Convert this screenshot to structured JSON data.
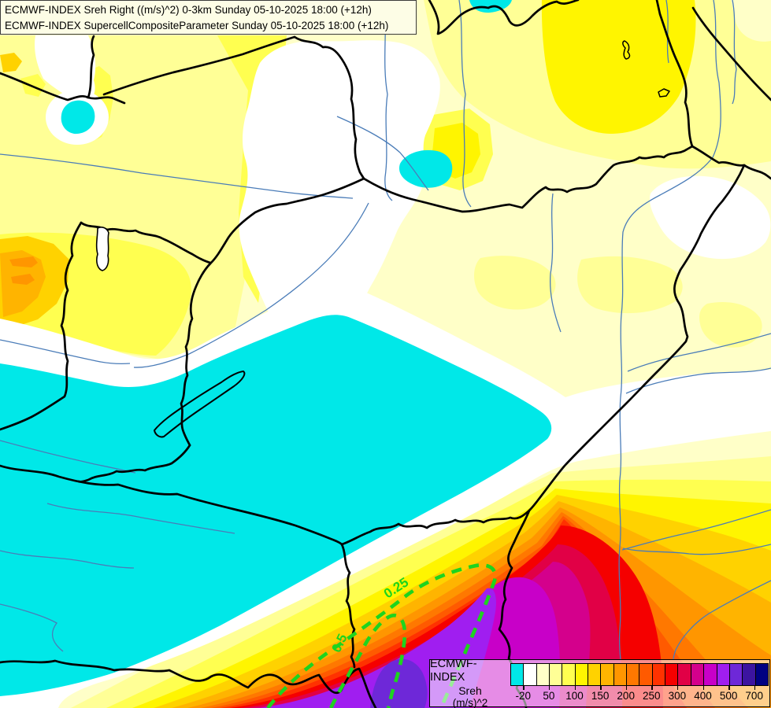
{
  "titlebar": {
    "line1": "ECMWF-INDEX Sreh Right ((m/s)^2) 0-3km Sunday 05-10-2025 18:00 (+12h)",
    "line2": "ECMWF-INDEX SupercellCompositeParameter Sunday 05-10-2025 18:00 (+12h)"
  },
  "legend": {
    "title": "ECMWF-INDEX",
    "param": "Sreh",
    "unit": "(m/s)^2",
    "tick_labels": [
      "-20",
      "50",
      "100",
      "150",
      "200",
      "250",
      "300",
      "400",
      "500",
      "700"
    ],
    "tick_boundaries": [
      1,
      3,
      5,
      7,
      9,
      11,
      13,
      15,
      17,
      19
    ],
    "colors": [
      "#00E8E8",
      "#FFFFFF",
      "#FFFFC8",
      "#FFFF96",
      "#FFFF50",
      "#FFF500",
      "#FFD200",
      "#FFB400",
      "#FF9600",
      "#FF7800",
      "#FF5A00",
      "#FF3200",
      "#F50000",
      "#E10046",
      "#D4008C",
      "#C800C8",
      "#A01EF0",
      "#6E28D8",
      "#3C14A0",
      "#000082"
    ]
  },
  "contours": {
    "parameter": "SupercellCompositeParameter",
    "labels": {
      "outer": "0.25",
      "inner": "0.5"
    },
    "color": "#1ED41E"
  },
  "map": {
    "palette": {
      "background": "#FFFFC8",
      "white": "#FFFFFF",
      "cyan": "#00E8E8",
      "border": "#000000",
      "river": "#4A7CB8",
      "lake_outline": "#000000"
    }
  }
}
